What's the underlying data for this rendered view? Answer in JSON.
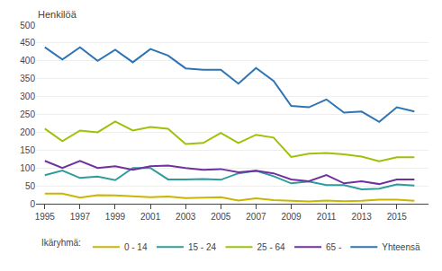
{
  "chart_data": {
    "type": "line",
    "ylabel": "Henkilöä",
    "legend_title": "Ikäryhmä:",
    "x": [
      1995,
      1996,
      1997,
      1998,
      1999,
      2000,
      2001,
      2002,
      2003,
      2004,
      2005,
      2006,
      2007,
      2008,
      2009,
      2010,
      2011,
      2012,
      2013,
      2014,
      2015,
      2016
    ],
    "series": [
      {
        "name": "0 - 14",
        "color": "#c9b600",
        "values": [
          28,
          28,
          17,
          24,
          23,
          20,
          18,
          20,
          16,
          17,
          18,
          9,
          15,
          10,
          8,
          6,
          9,
          7,
          8,
          11,
          11,
          8
        ]
      },
      {
        "name": "15 - 24",
        "color": "#2e9c9c",
        "values": [
          80,
          93,
          72,
          76,
          66,
          100,
          100,
          68,
          68,
          69,
          67,
          85,
          92,
          77,
          57,
          62,
          52,
          52,
          40,
          42,
          54,
          51
        ]
      },
      {
        "name": "25 - 64",
        "color": "#9dc209",
        "values": [
          210,
          175,
          205,
          200,
          230,
          205,
          215,
          210,
          167,
          170,
          198,
          170,
          193,
          185,
          131,
          140,
          142,
          138,
          132,
          119,
          130,
          130
        ]
      },
      {
        "name": "65 -",
        "color": "#7030a0",
        "values": [
          120,
          100,
          120,
          100,
          105,
          95,
          105,
          107,
          100,
          95,
          97,
          88,
          92,
          85,
          68,
          63,
          80,
          57,
          63,
          55,
          68,
          68
        ]
      },
      {
        "name": "Yhteensä",
        "color": "#2e74b5",
        "values": [
          438,
          404,
          438,
          400,
          431,
          396,
          433,
          415,
          379,
          375,
          375,
          336,
          380,
          344,
          274,
          270,
          292,
          255,
          258,
          229,
          270,
          258
        ]
      }
    ],
    "xlim": [
      1994.5,
      2016.8
    ],
    "xticks": [
      1995,
      1997,
      1999,
      2001,
      2003,
      2005,
      2007,
      2009,
      2011,
      2013,
      2015
    ],
    "ylim": [
      0,
      500
    ],
    "yticks": [
      0,
      50,
      100,
      150,
      200,
      250,
      300,
      350,
      400,
      450,
      500
    ],
    "grid": "y",
    "legend": "bottom"
  }
}
